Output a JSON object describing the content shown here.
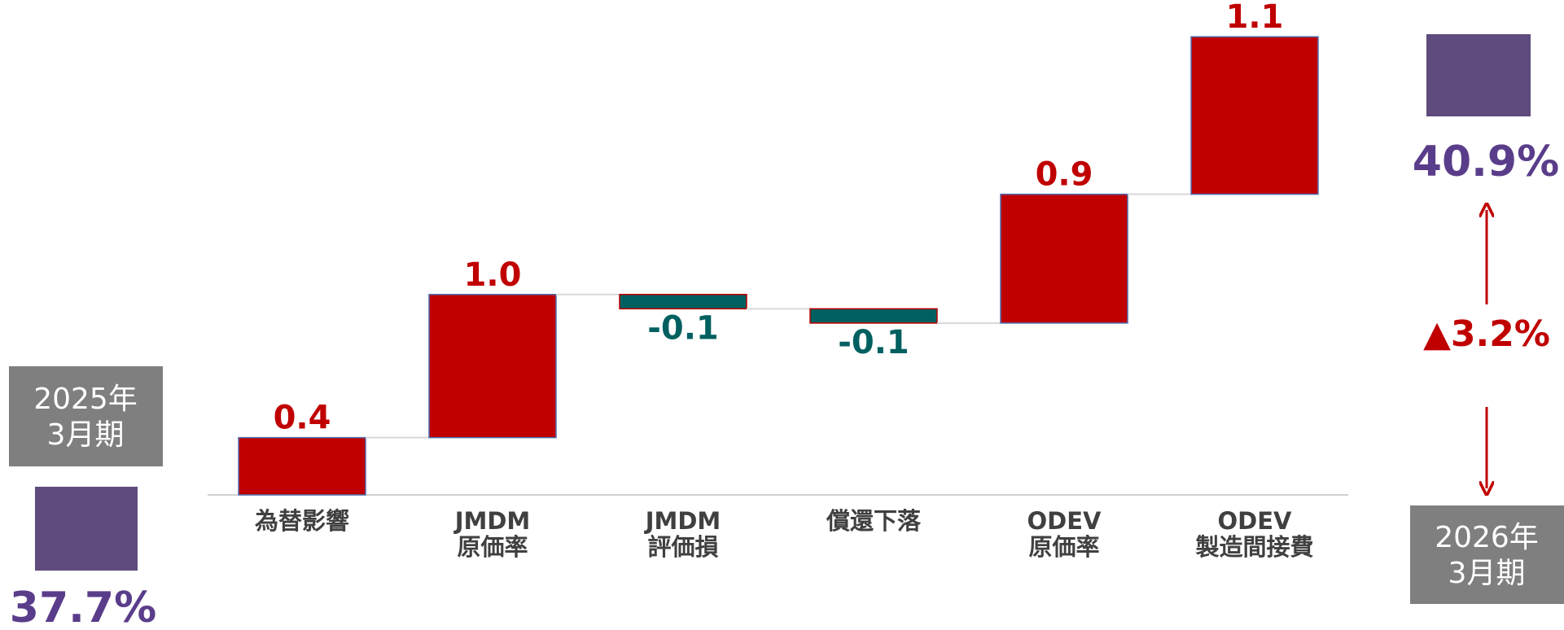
{
  "chart_data": {
    "type": "waterfall",
    "categories": [
      [
        "為替影響"
      ],
      [
        "JMDM",
        "原価率"
      ],
      [
        "JMDM",
        "評価損"
      ],
      [
        "償還下落"
      ],
      [
        "ODEV",
        "原価率"
      ],
      [
        "ODEV",
        "製造間接費"
      ]
    ],
    "values": [
      0.4,
      1.0,
      -0.1,
      -0.1,
      0.9,
      1.1
    ],
    "value_labels": [
      "0.4",
      "1.0",
      "-0.1",
      "-0.1",
      "0.9",
      "1.1"
    ],
    "colors": {
      "increase": "#c00000",
      "decrease": "#006060",
      "total": "#5f4b7d"
    },
    "ylim": [
      0,
      3.4
    ],
    "start": {
      "label": [
        "2025年",
        "3月期"
      ],
      "value": 37.7,
      "value_label": "37.7%"
    },
    "end": {
      "label": [
        "2026年",
        "3月期"
      ],
      "value": 40.9,
      "value_label": "40.9%"
    },
    "change": {
      "value": 3.2,
      "label": "▲3.2%"
    }
  }
}
